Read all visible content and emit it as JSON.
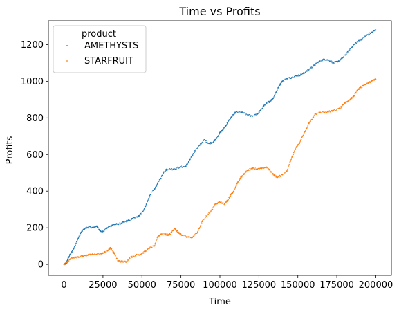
{
  "chart_data": {
    "type": "scatter",
    "title": "Time vs Profits",
    "xlabel": "Time",
    "ylabel": "Profits",
    "xlim": [
      -10000,
      210000
    ],
    "ylim": [
      -60,
      1330
    ],
    "xticks": [
      0,
      25000,
      50000,
      75000,
      100000,
      125000,
      150000,
      175000,
      200000
    ],
    "yticks": [
      0,
      200,
      400,
      600,
      800,
      1000,
      1200
    ],
    "legend": {
      "title": "product",
      "position": "top-left"
    },
    "series": [
      {
        "name": "AMETHYSTS",
        "color": "#1f77b4",
        "points": [
          [
            0,
            0
          ],
          [
            1500,
            5
          ],
          [
            2500,
            30
          ],
          [
            4000,
            55
          ],
          [
            5500,
            75
          ],
          [
            7000,
            100
          ],
          [
            9000,
            140
          ],
          [
            11000,
            175
          ],
          [
            13000,
            195
          ],
          [
            16000,
            205
          ],
          [
            19000,
            200
          ],
          [
            21000,
            210
          ],
          [
            23000,
            185
          ],
          [
            25000,
            180
          ],
          [
            28000,
            200
          ],
          [
            31000,
            215
          ],
          [
            34000,
            220
          ],
          [
            37000,
            225
          ],
          [
            39500,
            235
          ],
          [
            42000,
            240
          ],
          [
            45000,
            255
          ],
          [
            48000,
            265
          ],
          [
            51000,
            295
          ],
          [
            53000,
            330
          ],
          [
            55000,
            375
          ],
          [
            58000,
            410
          ],
          [
            60000,
            440
          ],
          [
            62000,
            470
          ],
          [
            64000,
            505
          ],
          [
            66000,
            520
          ],
          [
            70000,
            520
          ],
          [
            74000,
            530
          ],
          [
            78000,
            535
          ],
          [
            80000,
            560
          ],
          [
            82000,
            590
          ],
          [
            84000,
            620
          ],
          [
            87000,
            650
          ],
          [
            90000,
            680
          ],
          [
            93000,
            660
          ],
          [
            96000,
            670
          ],
          [
            98000,
            690
          ],
          [
            100000,
            720
          ],
          [
            102000,
            735
          ],
          [
            104000,
            760
          ],
          [
            106000,
            790
          ],
          [
            108000,
            810
          ],
          [
            110000,
            830
          ],
          [
            114000,
            830
          ],
          [
            118000,
            815
          ],
          [
            121000,
            810
          ],
          [
            124000,
            820
          ],
          [
            126000,
            840
          ],
          [
            128000,
            865
          ],
          [
            130000,
            880
          ],
          [
            132000,
            890
          ],
          [
            134000,
            905
          ],
          [
            136000,
            940
          ],
          [
            138000,
            975
          ],
          [
            140000,
            1000
          ],
          [
            143000,
            1015
          ],
          [
            146000,
            1020
          ],
          [
            149000,
            1030
          ],
          [
            152000,
            1035
          ],
          [
            155000,
            1050
          ],
          [
            158000,
            1070
          ],
          [
            161000,
            1090
          ],
          [
            164000,
            1110
          ],
          [
            167000,
            1120
          ],
          [
            170000,
            1115
          ],
          [
            173000,
            1100
          ],
          [
            176000,
            1110
          ],
          [
            179000,
            1130
          ],
          [
            182000,
            1160
          ],
          [
            185000,
            1190
          ],
          [
            188000,
            1215
          ],
          [
            191000,
            1230
          ],
          [
            194000,
            1250
          ],
          [
            197000,
            1265
          ],
          [
            200000,
            1280
          ]
        ]
      },
      {
        "name": "STARFRUIT",
        "color": "#ff7f0e",
        "points": [
          [
            0,
            0
          ],
          [
            2000,
            10
          ],
          [
            4000,
            30
          ],
          [
            6000,
            38
          ],
          [
            9000,
            40
          ],
          [
            12000,
            45
          ],
          [
            15000,
            50
          ],
          [
            18000,
            55
          ],
          [
            21000,
            55
          ],
          [
            24000,
            60
          ],
          [
            27000,
            70
          ],
          [
            29000,
            85
          ],
          [
            30000,
            90
          ],
          [
            31500,
            70
          ],
          [
            33000,
            50
          ],
          [
            34500,
            20
          ],
          [
            37000,
            15
          ],
          [
            40000,
            15
          ],
          [
            43000,
            40
          ],
          [
            46000,
            50
          ],
          [
            49000,
            55
          ],
          [
            52000,
            70
          ],
          [
            55000,
            90
          ],
          [
            58000,
            100
          ],
          [
            60000,
            150
          ],
          [
            62000,
            165
          ],
          [
            65000,
            165
          ],
          [
            67000,
            160
          ],
          [
            69000,
            175
          ],
          [
            71000,
            195
          ],
          [
            72000,
            185
          ],
          [
            74000,
            170
          ],
          [
            76000,
            160
          ],
          [
            79000,
            150
          ],
          [
            82000,
            145
          ],
          [
            85000,
            170
          ],
          [
            87000,
            200
          ],
          [
            89000,
            240
          ],
          [
            92000,
            270
          ],
          [
            95000,
            300
          ],
          [
            97000,
            330
          ],
          [
            100000,
            340
          ],
          [
            103000,
            330
          ],
          [
            105000,
            350
          ],
          [
            107000,
            380
          ],
          [
            109000,
            400
          ],
          [
            111000,
            440
          ],
          [
            113000,
            470
          ],
          [
            115000,
            490
          ],
          [
            118000,
            515
          ],
          [
            121000,
            525
          ],
          [
            124000,
            520
          ],
          [
            127000,
            525
          ],
          [
            130000,
            530
          ],
          [
            133000,
            505
          ],
          [
            135000,
            485
          ],
          [
            137000,
            475
          ],
          [
            140000,
            490
          ],
          [
            143000,
            510
          ],
          [
            145000,
            560
          ],
          [
            147000,
            600
          ],
          [
            149000,
            640
          ],
          [
            151000,
            660
          ],
          [
            153000,
            700
          ],
          [
            155000,
            730
          ],
          [
            157000,
            770
          ],
          [
            159000,
            790
          ],
          [
            161000,
            820
          ],
          [
            164000,
            830
          ],
          [
            167000,
            830
          ],
          [
            170000,
            835
          ],
          [
            173000,
            840
          ],
          [
            176000,
            850
          ],
          [
            178000,
            860
          ],
          [
            180000,
            880
          ],
          [
            182000,
            890
          ],
          [
            184000,
            905
          ],
          [
            186000,
            920
          ],
          [
            188000,
            950
          ],
          [
            190000,
            965
          ],
          [
            192000,
            975
          ],
          [
            194000,
            985
          ],
          [
            196000,
            995
          ],
          [
            198000,
            1005
          ],
          [
            200000,
            1010
          ]
        ]
      }
    ]
  }
}
